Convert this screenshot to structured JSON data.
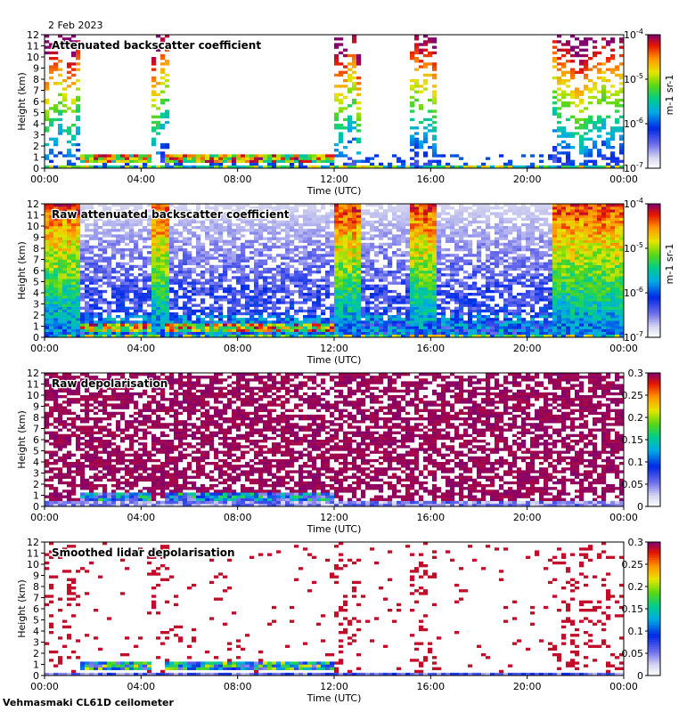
{
  "date_label": "2 Feb 2023",
  "footer_label": "Vehmasmaki CL61D ceilometer",
  "chart_data": [
    {
      "type": "heatmap",
      "title": "Attenuated backscatter coefficient",
      "xlabel": "Time (UTC)",
      "ylabel": "Height (km)",
      "xticks": [
        "00:00",
        "04:00",
        "08:00",
        "12:00",
        "16:00",
        "20:00",
        "00:00"
      ],
      "ylim": [
        0,
        12
      ],
      "yticks": [
        0,
        1,
        2,
        3,
        4,
        5,
        6,
        7,
        8,
        9,
        10,
        11,
        12
      ],
      "colorbar": {
        "scale": "log",
        "range": [
          1e-07,
          0.0001
        ],
        "tick_labels": [
          "10-7",
          "10-6",
          "10-5",
          "10-4"
        ],
        "unit": "m-1 sr-1"
      },
      "field": "filtered"
    },
    {
      "type": "heatmap",
      "title": "Raw attenuated backscatter coefficient",
      "xlabel": "Time (UTC)",
      "ylabel": "Height (km)",
      "xticks": [
        "00:00",
        "04:00",
        "08:00",
        "12:00",
        "16:00",
        "20:00",
        "00:00"
      ],
      "ylim": [
        0,
        12
      ],
      "yticks": [
        0,
        1,
        2,
        3,
        4,
        5,
        6,
        7,
        8,
        9,
        10,
        11,
        12
      ],
      "colorbar": {
        "scale": "log",
        "range": [
          1e-07,
          0.0001
        ],
        "tick_labels": [
          "10-7",
          "10-6",
          "10-5",
          "10-4"
        ],
        "unit": "m-1 sr-1"
      },
      "field": "raw"
    },
    {
      "type": "heatmap",
      "title": "Raw depolarisation",
      "xlabel": "Time (UTC)",
      "ylabel": "Height (km)",
      "xticks": [
        "00:00",
        "04:00",
        "08:00",
        "12:00",
        "16:00",
        "20:00",
        "00:00"
      ],
      "ylim": [
        0,
        12
      ],
      "yticks": [
        0,
        1,
        2,
        3,
        4,
        5,
        6,
        7,
        8,
        9,
        10,
        11,
        12
      ],
      "colorbar": {
        "scale": "linear",
        "range": [
          0,
          0.3
        ],
        "tick_labels": [
          "0",
          "0.05",
          "0.1",
          "0.15",
          "0.2",
          "0.25",
          "0.3"
        ],
        "unit": ""
      },
      "field": "depol_raw"
    },
    {
      "type": "heatmap",
      "title": "Smoothed lidar depolarisation",
      "xlabel": "Time (UTC)",
      "ylabel": "Height (km)",
      "xticks": [
        "00:00",
        "04:00",
        "08:00",
        "12:00",
        "16:00",
        "20:00",
        "00:00"
      ],
      "ylim": [
        0,
        12
      ],
      "yticks": [
        0,
        1,
        2,
        3,
        4,
        5,
        6,
        7,
        8,
        9,
        10,
        11,
        12
      ],
      "colorbar": {
        "scale": "linear",
        "range": [
          0,
          0.3
        ],
        "tick_labels": [
          "0",
          "0.05",
          "0.1",
          "0.15",
          "0.2",
          "0.25",
          "0.3"
        ],
        "unit": ""
      },
      "field": "depol_smooth"
    }
  ]
}
